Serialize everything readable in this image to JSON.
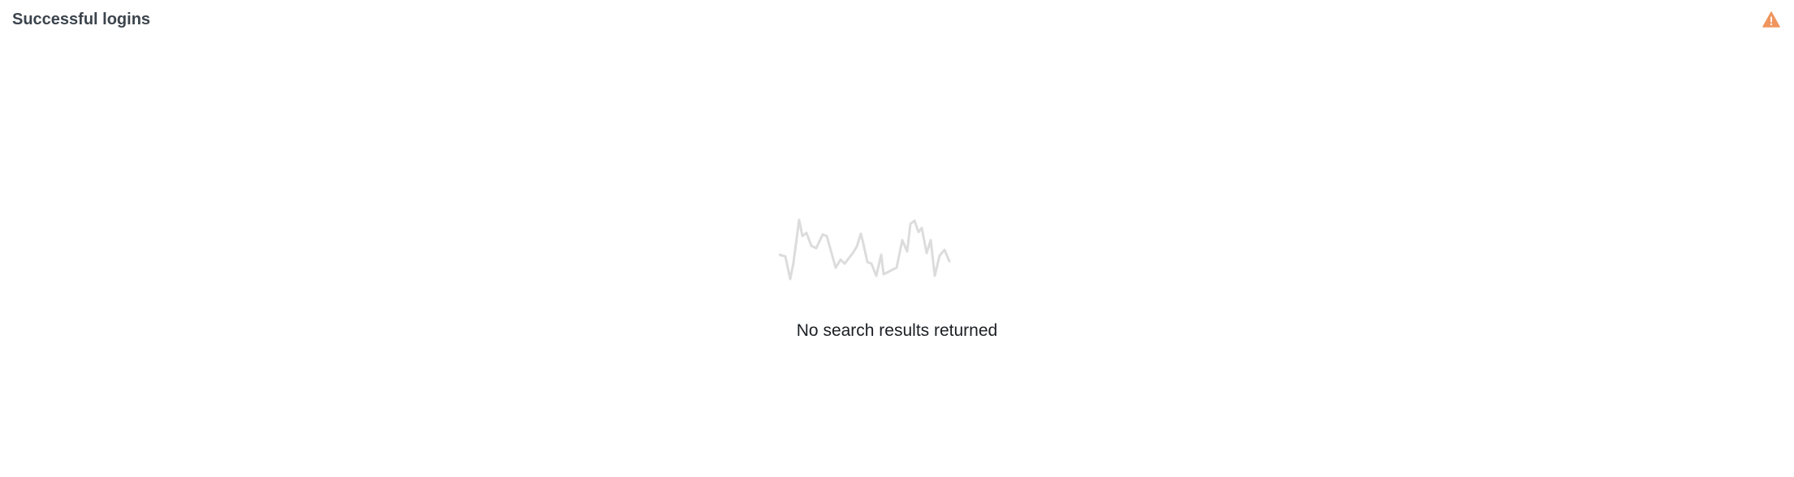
{
  "panel": {
    "title": "Successful logins",
    "warning_icon": "warning-triangle-icon",
    "warning_color": "#f0955d"
  },
  "empty_state": {
    "illustration_icon": "empty-sparkline-icon",
    "illustration_color": "#dcdcdc",
    "message": "No search results returned"
  }
}
